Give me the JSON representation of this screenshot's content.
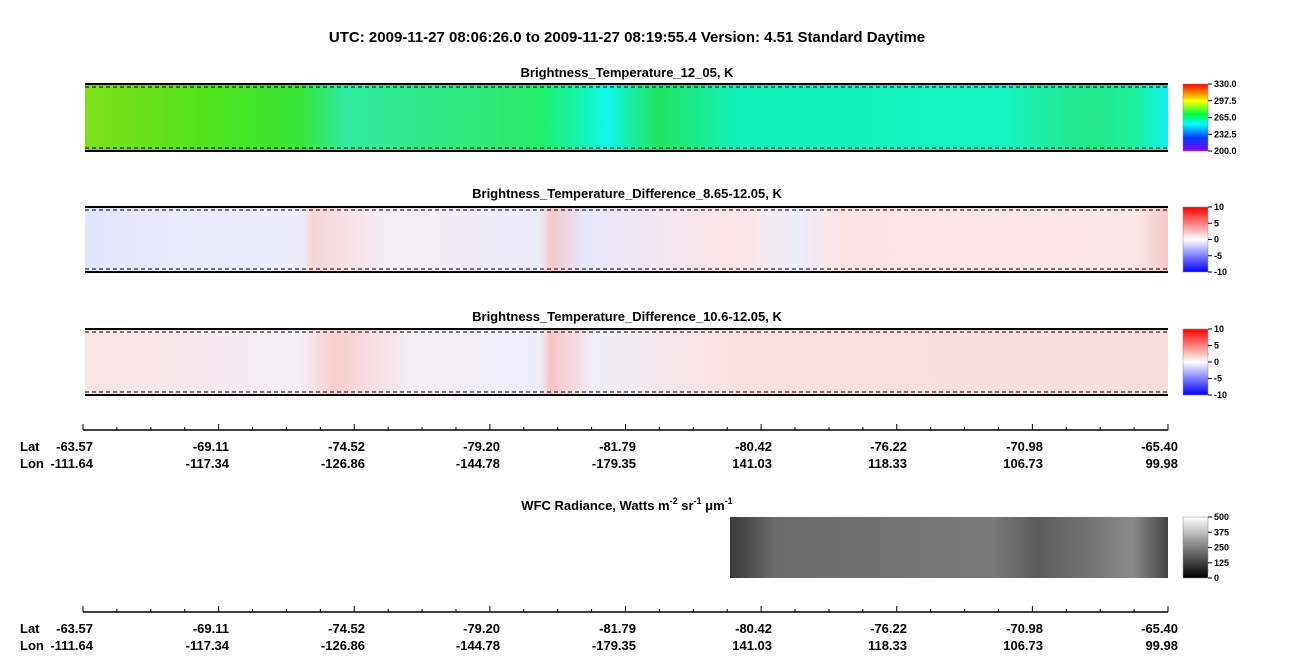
{
  "header": {
    "title": "UTC:  2009-11-27   08:06:26.0  to  2009-11-27   08:19:55.4    Version: 4.51  Standard Daytime"
  },
  "panels": [
    {
      "title": "Brightness_Temperature_12_05, K",
      "lim": [
        200,
        330
      ],
      "ticks": [
        {
          "value": 200,
          "label": "200.0"
        },
        {
          "value": 232.5,
          "label": "232.5"
        },
        {
          "value": 265,
          "label": "265.0"
        },
        {
          "value": 297.5,
          "label": "297.5"
        },
        {
          "value": 330,
          "label": "330.0"
        }
      ]
    },
    {
      "title": "Brightness_Temperature_Difference_8.65-12.05, K",
      "lim": [
        -10,
        10
      ],
      "ticks": [
        -10,
        -5,
        0,
        5,
        10
      ]
    },
    {
      "title": "Brightness_Temperature_Difference_10.6-12.05, K",
      "lim": [
        -10,
        10
      ],
      "ticks": [
        -10,
        -5,
        0,
        5,
        10
      ]
    },
    {
      "title_parts": [
        "WFC Radiance, Watts m",
        "-2",
        " sr",
        "-1",
        " μm",
        "-1"
      ],
      "lim": [
        0,
        500
      ],
      "ticks": [
        0,
        125,
        250,
        375,
        500
      ]
    }
  ],
  "axis": {
    "lat_label": "Lat",
    "lon_label": "Lon",
    "lat": [
      "-63.57",
      "-69.11",
      "-74.52",
      "-79.20",
      "-81.79",
      "-80.42",
      "-76.22",
      "-70.98",
      "-65.40"
    ],
    "lon": [
      "-111.64",
      "-117.34",
      "-126.86",
      "-144.78",
      "-179.35",
      "141.03",
      "118.33",
      "106.73",
      "99.98"
    ]
  }
}
